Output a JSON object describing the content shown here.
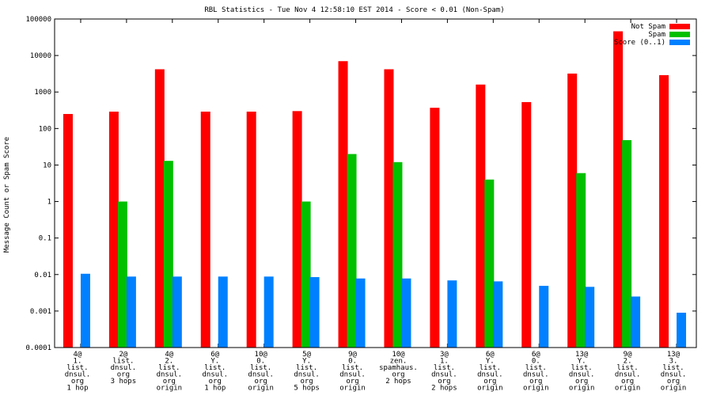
{
  "chart_data": {
    "type": "bar",
    "scale": "log",
    "title": "RBL Statistics - Tue Nov  4 12:58:10 EST 2014 - Score < 0.01 (Non-Spam)",
    "xlabel": "",
    "ylabel": "Message Count or Spam Score",
    "ylim": [
      0.0001,
      100000
    ],
    "y_ticks": [
      "0.0001",
      "0.001",
      "0.01",
      "0.1",
      "1",
      "10",
      "100",
      "1000",
      "10000",
      "100000"
    ],
    "grid": false,
    "legend_position": "top-right",
    "categories": [
      [
        "4@",
        "1.",
        "list.",
        "dnsul.",
        "org",
        "1 hop"
      ],
      [
        "2@",
        "list.",
        "dnsul.",
        "org",
        "3 hops"
      ],
      [
        "4@",
        "2.",
        "list.",
        "dnsul.",
        "org",
        "origin"
      ],
      [
        "6@",
        "Y.",
        "list.",
        "dnsul.",
        "org",
        "1 hop"
      ],
      [
        "10@",
        "0.",
        "list.",
        "dnsul.",
        "org",
        "origin"
      ],
      [
        "5@",
        "Y.",
        "list.",
        "dnsul.",
        "org",
        "5 hops"
      ],
      [
        "9@",
        "0.",
        "list.",
        "dnsul.",
        "org",
        "origin"
      ],
      [
        "10@",
        "zen.",
        "spamhaus.",
        "org",
        "2 hops"
      ],
      [
        "3@",
        "1.",
        "list.",
        "dnsul.",
        "org",
        "2 hops"
      ],
      [
        "6@",
        "Y.",
        "list.",
        "dnsul.",
        "org",
        "origin"
      ],
      [
        "6@",
        "0.",
        "list.",
        "dnsul.",
        "org",
        "origin"
      ],
      [
        "13@",
        "Y.",
        "list.",
        "dnsul.",
        "org",
        "origin"
      ],
      [
        "9@",
        "2.",
        "list.",
        "dnsul.",
        "org",
        "origin"
      ],
      [
        "13@",
        "3.",
        "list.",
        "dnsul.",
        "org",
        "origin"
      ]
    ],
    "series": [
      {
        "name": "Not Spam",
        "color": "#ff0000",
        "values": [
          250,
          290,
          4200,
          290,
          290,
          300,
          7000,
          4200,
          370,
          1600,
          530,
          3200,
          46000,
          2900
        ]
      },
      {
        "name": "Spam",
        "color": "#00c000",
        "values": [
          null,
          1,
          13,
          null,
          null,
          1,
          20,
          12,
          null,
          4,
          null,
          6,
          48,
          null
        ]
      },
      {
        "name": "Score (0..1)",
        "color": "#0080ff",
        "values": [
          0.0105,
          0.0088,
          0.0088,
          0.0088,
          0.0088,
          0.0085,
          0.0078,
          0.0078,
          0.0069,
          0.0065,
          0.0049,
          0.0046,
          0.0025,
          0.0009
        ]
      }
    ]
  }
}
